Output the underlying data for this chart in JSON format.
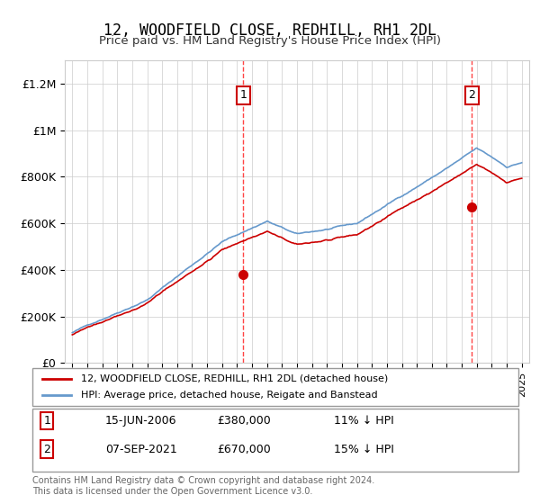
{
  "title": "12, WOODFIELD CLOSE, REDHILL, RH1 2DL",
  "subtitle": "Price paid vs. HM Land Registry's House Price Index (HPI)",
  "ylim": [
    0,
    1300000
  ],
  "yticks": [
    0,
    200000,
    400000,
    600000,
    800000,
    1000000,
    1200000
  ],
  "ytick_labels": [
    "£0",
    "£200K",
    "£400K",
    "£600K",
    "£800K",
    "£1M",
    "£1.2M"
  ],
  "sale1_date": "15-JUN-2006",
  "sale1_price": 380000,
  "sale1_label": "11% ↓ HPI",
  "sale2_date": "07-SEP-2021",
  "sale2_price": 670000,
  "sale2_label": "15% ↓ HPI",
  "legend_line1": "12, WOODFIELD CLOSE, REDHILL, RH1 2DL (detached house)",
  "legend_line2": "HPI: Average price, detached house, Reigate and Banstead",
  "footer": "Contains HM Land Registry data © Crown copyright and database right 2024.\nThis data is licensed under the Open Government Licence v3.0.",
  "line_color_price": "#cc0000",
  "line_color_hpi": "#6699cc",
  "dashed_vline_color": "#ff4444",
  "annotation_box_color": "#cc0000",
  "x_start_year": 1995,
  "x_end_year": 2025
}
